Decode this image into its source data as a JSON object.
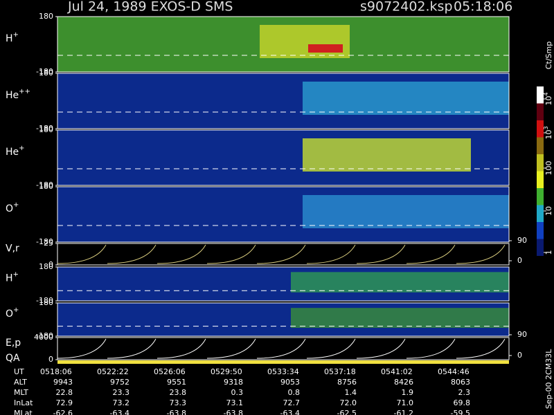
{
  "chart_data": {
    "type": "spectrogram",
    "title": "Jul 24, 1989   EXOS-D SMS",
    "file": "s9072402.ksp",
    "time": "05:18:06",
    "panels": [
      {
        "label": "H",
        "sup": "+",
        "yticks": [
          180,
          -180
        ]
      },
      {
        "label": "He",
        "sup": "++",
        "yticks": [
          180,
          -180
        ]
      },
      {
        "label": "He",
        "sup": "+",
        "yticks": [
          180,
          -180
        ]
      },
      {
        "label": "O",
        "sup": "+",
        "yticks": [
          180,
          -180
        ]
      },
      {
        "label": "V,r",
        "yticks": [
          25,
          0
        ],
        "y2ticks": [
          90,
          0
        ]
      },
      {
        "label": "H",
        "sup": "+",
        "yticks": [
          180,
          -180
        ]
      },
      {
        "label": "O",
        "sup": "+",
        "yticks": [
          180,
          -180
        ]
      },
      {
        "label": "E,p",
        "label2": "QA",
        "yticks": [
          4000,
          0
        ],
        "y2ticks": [
          90,
          0
        ]
      }
    ],
    "colorbar": {
      "label": "Ct/Smp",
      "ticks": [
        {
          "value": 10000,
          "label": "10",
          "exponent": "4"
        },
        {
          "value": 1000,
          "label": "10",
          "exponent": "3"
        },
        100,
        10,
        1
      ]
    },
    "ephemeris": {
      "rows": [
        {
          "name": "UT",
          "values": [
            "0518:06",
            "0522:22",
            "0526:06",
            "0529:50",
            "0533:34",
            "0537:18",
            "0541:02",
            "0544:46"
          ]
        },
        {
          "name": "ALT",
          "values": [
            "9943",
            "9752",
            "9551",
            "9318",
            "9053",
            "8756",
            "8426",
            "8063"
          ]
        },
        {
          "name": "MLT",
          "values": [
            "22.8",
            "23.3",
            "23.8",
            "0.3",
            "0.8",
            "1.4",
            "1.9",
            "2.3"
          ]
        },
        {
          "name": "InLat",
          "values": [
            "72.9",
            "73.2",
            "73.3",
            "73.1",
            "72.7",
            "72.0",
            "71.0",
            "69.8"
          ]
        },
        {
          "name": "MLat",
          "values": [
            "-62.6",
            "-63.4",
            "-63.8",
            "-63.8",
            "-63.4",
            "-62.5",
            "-61.2",
            "-59.5"
          ]
        }
      ]
    },
    "footer": "Sep-00 2CM33L"
  }
}
